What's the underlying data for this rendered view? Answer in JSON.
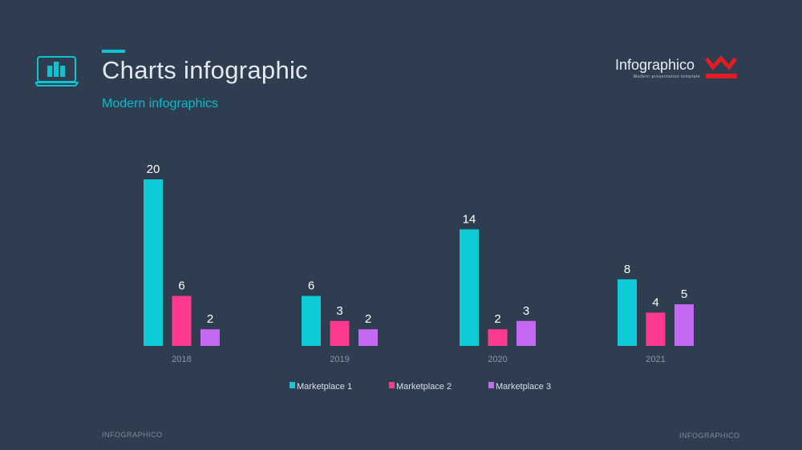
{
  "header": {
    "title": "Charts infographic",
    "subtitle": "Modern infographics",
    "icon": "laptop-chart-icon"
  },
  "brand": {
    "name": "Infographico",
    "tagline": "Modern presentation template",
    "logo": "w-logo-icon",
    "logo_color": "#e21c23"
  },
  "footer": {
    "left": "INFOGRAPHICO",
    "right": "INFOGRAPHICO"
  },
  "colors": {
    "background": "#2e3d50",
    "accent": "#10c3d3"
  },
  "chart_data": {
    "type": "bar",
    "categories": [
      "2018",
      "2019",
      "2020",
      "2021"
    ],
    "series": [
      {
        "name": "Marketplace 1",
        "color": "#0fcbd8",
        "values": [
          20,
          6,
          14,
          8
        ]
      },
      {
        "name": "Marketplace 2",
        "color": "#fe3a8e",
        "values": [
          6,
          3,
          2,
          4
        ]
      },
      {
        "name": "Marketplace 3",
        "color": "#c468f2",
        "values": [
          2,
          2,
          3,
          5
        ]
      }
    ],
    "title": "",
    "xlabel": "",
    "ylabel": "",
    "ylim": [
      0,
      20
    ],
    "grid": false,
    "data_labels": true,
    "legend_position": "bottom-center"
  }
}
